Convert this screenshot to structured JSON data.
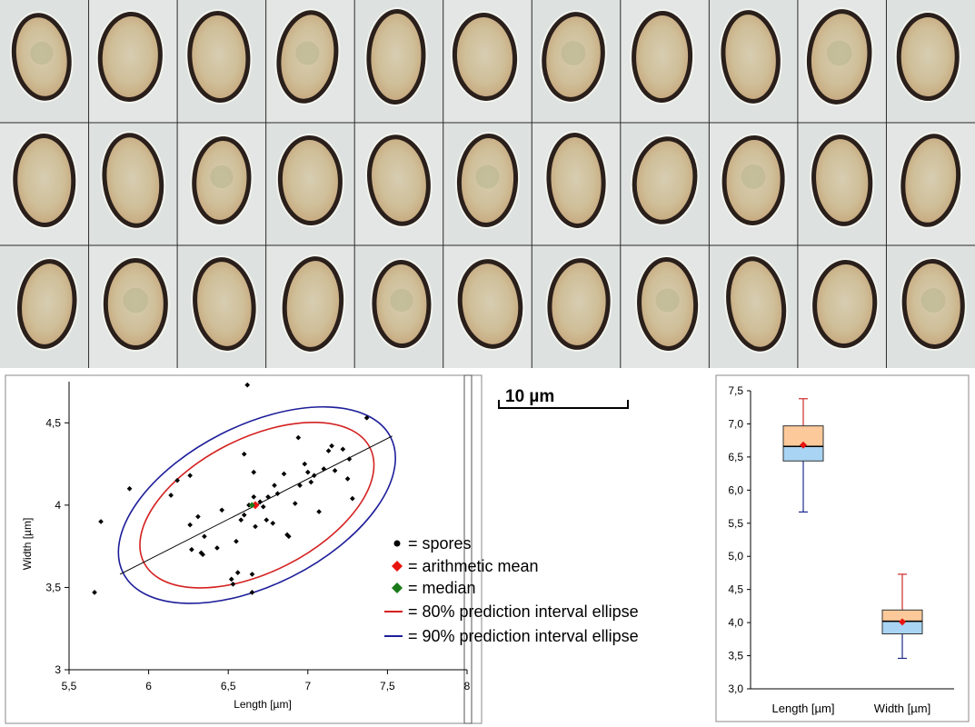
{
  "scale_bar": {
    "label": "10 µm"
  },
  "spore_grid": {
    "rows": 3,
    "cols": 11,
    "image_count": 33
  },
  "legend": {
    "items": [
      {
        "marker": "dot",
        "color": "#000000",
        "label": "= spores"
      },
      {
        "marker": "diamond",
        "color": "#e8140f",
        "label": "= arithmetic mean"
      },
      {
        "marker": "diamond",
        "color": "#1a7a1a",
        "label": "= median"
      },
      {
        "marker": "line",
        "color": "#d42020",
        "label": "= 80% prediction interval ellipse"
      },
      {
        "marker": "line",
        "color": "#1e1e9a",
        "label": "= 90% prediction interval ellipse"
      }
    ]
  },
  "chart_data": [
    {
      "type": "scatter",
      "title": "",
      "xlabel": "Length [µm]",
      "ylabel": "Width [µm]",
      "xlim": [
        5.5,
        8
      ],
      "ylim": [
        3,
        4.75
      ],
      "x_ticks": [
        "5,5",
        "6",
        "6,5",
        "7",
        "7,5",
        "8"
      ],
      "x_tick_values": [
        5.5,
        6,
        6.5,
        7,
        7.5,
        8
      ],
      "y_ticks": [
        "3",
        "3,5",
        "4",
        "4,5"
      ],
      "y_tick_values": [
        3,
        3.5,
        4,
        4.5
      ],
      "grid": false,
      "series": [
        {
          "points": [
            [
              5.66,
              3.47
            ],
            [
              5.7,
              3.9
            ],
            [
              5.88,
              4.1
            ],
            [
              6.14,
              4.06
            ],
            [
              6.18,
              4.15
            ],
            [
              6.26,
              4.18
            ],
            [
              6.26,
              3.88
            ],
            [
              6.27,
              3.73
            ],
            [
              6.31,
              3.93
            ],
            [
              6.33,
              3.71
            ],
            [
              6.34,
              3.7
            ],
            [
              6.35,
              3.81
            ],
            [
              6.43,
              3.74
            ],
            [
              6.46,
              3.97
            ],
            [
              6.52,
              3.55
            ],
            [
              6.53,
              3.52
            ],
            [
              6.55,
              3.78
            ],
            [
              6.56,
              3.59
            ],
            [
              6.58,
              3.91
            ],
            [
              6.6,
              4.31
            ],
            [
              6.6,
              3.94
            ],
            [
              6.62,
              4.73
            ],
            [
              6.63,
              4.0
            ],
            [
              6.65,
              3.47
            ],
            [
              6.65,
              3.58
            ],
            [
              6.66,
              4.2
            ],
            [
              6.66,
              4.05
            ],
            [
              6.67,
              3.87
            ],
            [
              6.7,
              4.02
            ],
            [
              6.72,
              3.99
            ],
            [
              6.74,
              3.91
            ],
            [
              6.75,
              4.05
            ],
            [
              6.78,
              3.89
            ],
            [
              6.79,
              4.12
            ],
            [
              6.81,
              4.07
            ],
            [
              6.85,
              4.19
            ],
            [
              6.87,
              3.82
            ],
            [
              6.88,
              3.81
            ],
            [
              6.92,
              4.01
            ],
            [
              6.94,
              4.41
            ],
            [
              6.95,
              4.12
            ],
            [
              6.98,
              4.25
            ],
            [
              7.0,
              4.2
            ],
            [
              7.02,
              4.14
            ],
            [
              7.04,
              4.18
            ],
            [
              7.07,
              3.96
            ],
            [
              7.1,
              4.22
            ],
            [
              7.13,
              4.33
            ],
            [
              7.15,
              4.36
            ],
            [
              7.17,
              4.21
            ],
            [
              7.22,
              4.34
            ],
            [
              7.25,
              4.16
            ],
            [
              7.26,
              4.28
            ],
            [
              7.28,
              4.04
            ],
            [
              7.37,
              4.53
            ]
          ]
        }
      ],
      "mean": [
        6.67,
        4.0
      ],
      "median": [
        6.66,
        4.0
      ],
      "regression": {
        "x1": 5.82,
        "y1": 3.58,
        "x2": 7.53,
        "y2": 4.42
      },
      "ellipse_80": {
        "cx": 6.68,
        "cy": 4.0,
        "half_length": 0.71,
        "half_width": 0.42
      },
      "ellipse_90": {
        "cx": 6.68,
        "cy": 4.0,
        "half_length": 0.84,
        "half_width": 0.5
      }
    },
    {
      "type": "box",
      "title": "",
      "xlabel": "",
      "ylabel": "",
      "ylim": [
        3.0,
        7.5
      ],
      "y_ticks": [
        "3,0",
        "3,5",
        "4,0",
        "4,5",
        "5,0",
        "5,5",
        "6,0",
        "6,5",
        "7,0",
        "7,5"
      ],
      "y_tick_values": [
        3.0,
        3.5,
        4.0,
        4.5,
        5.0,
        5.5,
        6.0,
        6.5,
        7.0,
        7.5
      ],
      "categories": [
        "Length [µm]",
        "Width [µm]"
      ],
      "boxes": [
        {
          "min": 5.67,
          "q1": 6.44,
          "median": 6.66,
          "q3": 6.97,
          "max": 7.38,
          "mean": 6.68
        },
        {
          "min": 3.46,
          "q1": 3.83,
          "median": 4.02,
          "q3": 4.19,
          "max": 4.73,
          "mean": 4.01
        }
      ],
      "colors": {
        "upper_box": "#fbc99a",
        "lower_box": "#a9d4f3",
        "whisker_top": "#cc2a2a",
        "whisker_bottom": "#1e2a8a",
        "mean": "#e8140f"
      }
    }
  ]
}
